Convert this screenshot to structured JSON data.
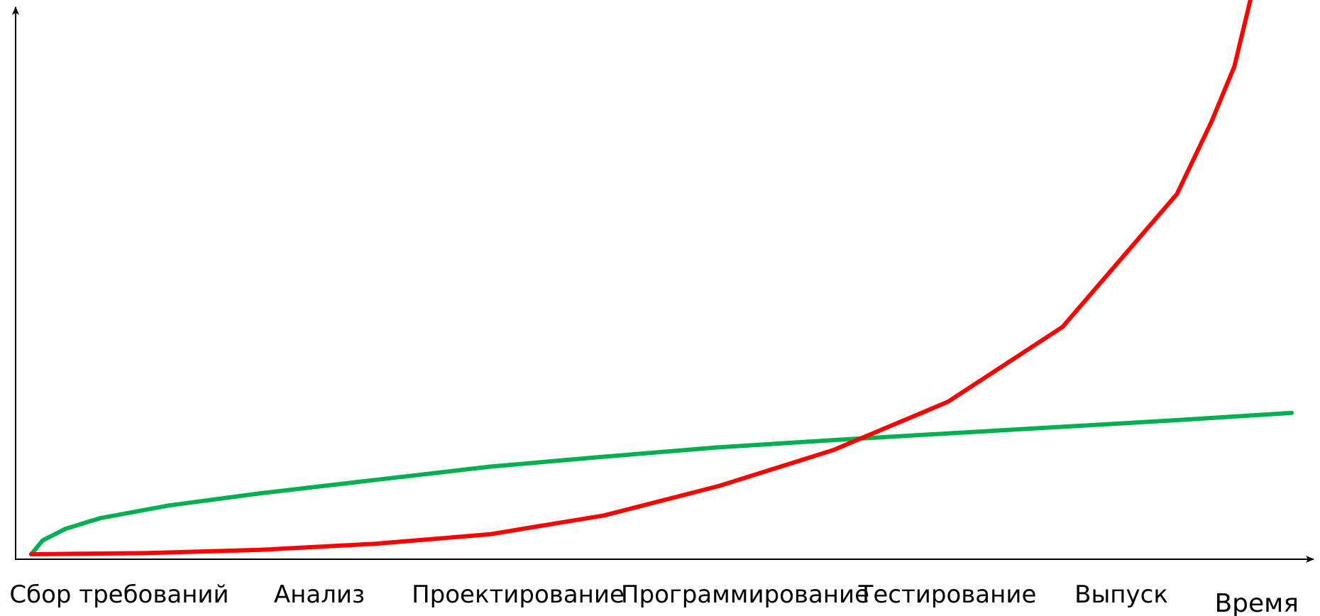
{
  "chart_data": {
    "type": "line",
    "title": "",
    "xlabel": "Время",
    "ylabel": "",
    "categories": [
      "Сбор требований",
      "Анализ",
      "Проектирование",
      "Программирование",
      "Тестирование",
      "Выпуск"
    ],
    "x_range": [
      0,
      5.5
    ],
    "y_range": [
      0,
      100
    ],
    "y_ticks": false,
    "grid": false,
    "legend": "none",
    "series": [
      {
        "color": "#00b050",
        "points": [
          [
            0,
            0
          ],
          [
            0.05,
            2.5
          ],
          [
            0.15,
            4.6
          ],
          [
            0.3,
            6.5
          ],
          [
            0.6,
            8.8
          ],
          [
            1.0,
            11.0
          ],
          [
            1.5,
            13.4
          ],
          [
            2.0,
            15.8
          ],
          [
            2.5,
            17.6
          ],
          [
            3.0,
            19.3
          ],
          [
            3.5,
            20.6
          ],
          [
            4.0,
            21.8
          ],
          [
            4.5,
            23.0
          ],
          [
            5.0,
            24.2
          ],
          [
            5.5,
            25.5
          ]
        ]
      },
      {
        "color": "#ff0000",
        "points": [
          [
            0,
            0
          ],
          [
            0.5,
            0.2
          ],
          [
            1.0,
            0.8
          ],
          [
            1.5,
            1.9
          ],
          [
            2.0,
            3.6
          ],
          [
            2.5,
            7.0
          ],
          [
            3.0,
            12.3
          ],
          [
            3.5,
            18.8
          ],
          [
            4.0,
            27.5
          ],
          [
            4.5,
            41.0
          ],
          [
            5.0,
            65.0
          ],
          [
            5.15,
            78.0
          ],
          [
            5.25,
            88.0
          ],
          [
            5.32,
            100
          ]
        ]
      }
    ]
  }
}
